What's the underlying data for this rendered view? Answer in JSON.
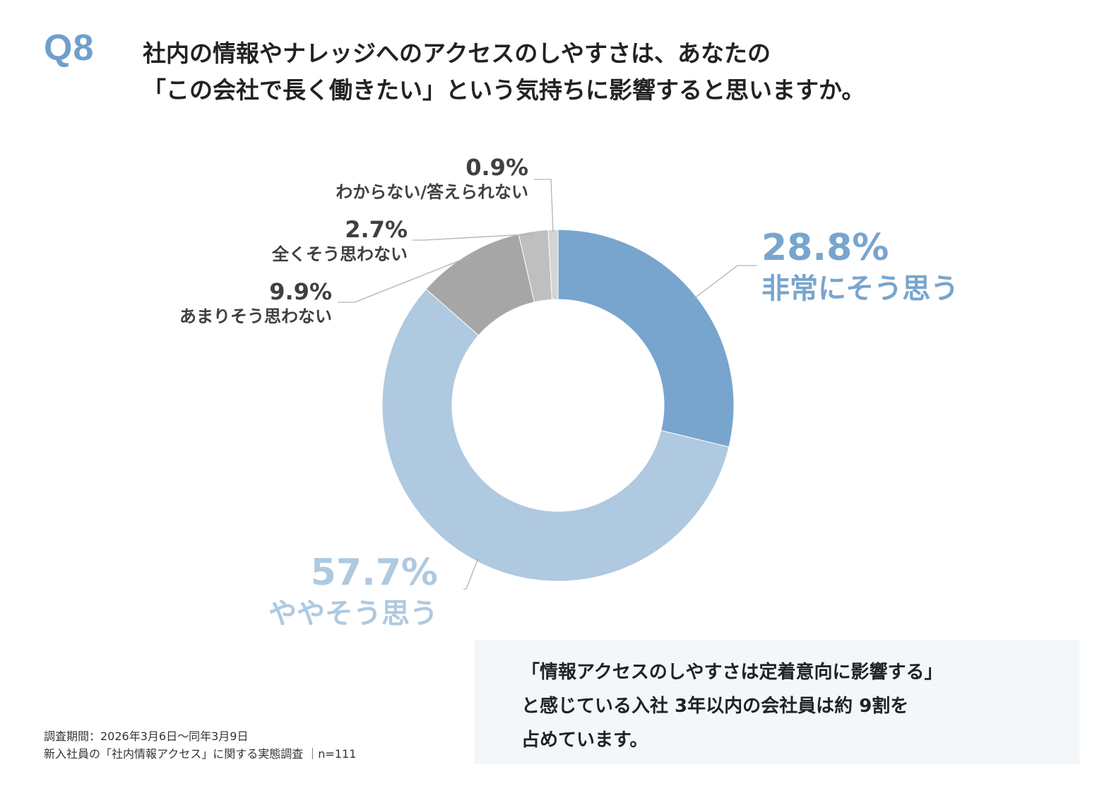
{
  "header": {
    "question_number": "Q8",
    "question_line1": "社内の情報やナレッジへのアクセスのしやすさは、あなたの",
    "question_line2": "「この会社で長く働きたい」という気持ちに影響すると思いますか。"
  },
  "chart_data": {
    "type": "pie",
    "subtype": "donut",
    "title": "",
    "start_angle": "12 o'clock, clockwise",
    "slices": [
      {
        "label": "非常にそう思う",
        "value": 28.8,
        "value_label": "28.8%",
        "color": "#78a5cd"
      },
      {
        "label": "ややそう思う",
        "value": 57.7,
        "value_label": "57.7%",
        "color": "#afc9e0"
      },
      {
        "label": "あまりそう思わない",
        "value": 9.9,
        "value_label": "9.9%",
        "color": "#a6a6a6"
      },
      {
        "label": "全くそう思わない",
        "value": 2.7,
        "value_label": "2.7%",
        "color": "#bfbfbf"
      },
      {
        "label": "わからない/答えられない",
        "value": 0.9,
        "value_label": "0.9%",
        "color": "#d4d4d4"
      }
    ]
  },
  "summary": {
    "line1": "「情報アクセスのしやすさは定着意向に影響する」",
    "line2": "と感じている入社 3年以内の会社員は約 9割を",
    "line3": "占めています。"
  },
  "footnote": {
    "period": "調査期間：2026年3月6日～同年3月9日",
    "survey": "新入社員の「社内情報アクセス」に関する実態調査 ｜n=111"
  },
  "colors": {
    "accent_blue": "#6f9fcc",
    "text_dark": "#333333",
    "label_gray": "#404040",
    "summary_bg": "#f3f7fa"
  }
}
